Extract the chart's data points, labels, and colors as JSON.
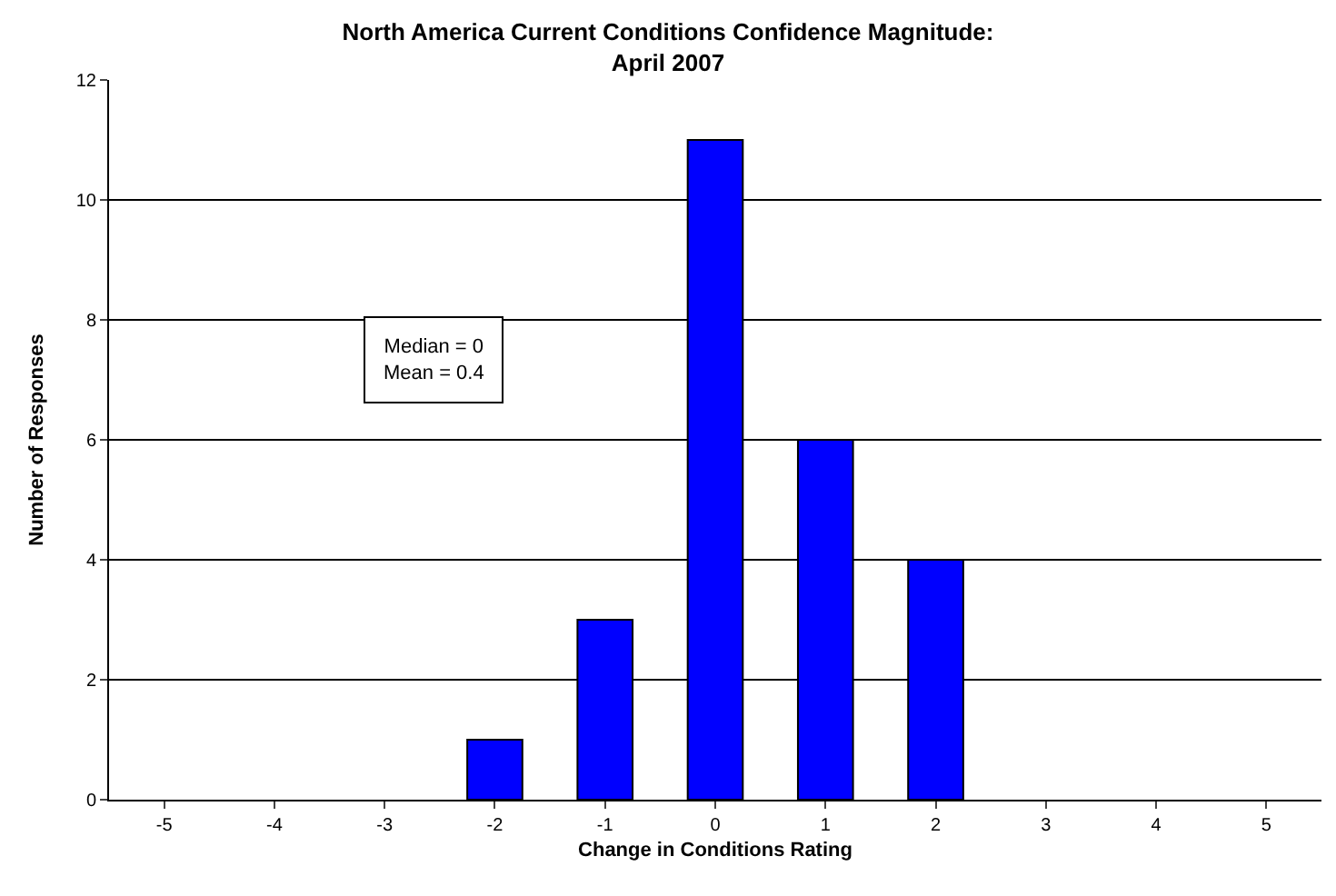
{
  "chart_data": {
    "type": "bar",
    "title": "North America Current Conditions Confidence Magnitude:\nApril 2007",
    "xlabel": "Change in Conditions Rating",
    "ylabel": "Number of Responses",
    "categories": [
      "-5",
      "-4",
      "-3",
      "-2",
      "-1",
      "0",
      "1",
      "2",
      "3",
      "4",
      "5"
    ],
    "values": [
      0,
      0,
      0,
      1,
      3,
      11,
      6,
      4,
      0,
      0,
      0
    ],
    "color": "#0000ff",
    "ylim": [
      0,
      12
    ],
    "yticks": [
      0,
      2,
      4,
      6,
      8,
      10,
      12
    ],
    "grid": "y",
    "legend": false,
    "annotations": [
      "Median = 0\nMean = 0.4"
    ]
  }
}
